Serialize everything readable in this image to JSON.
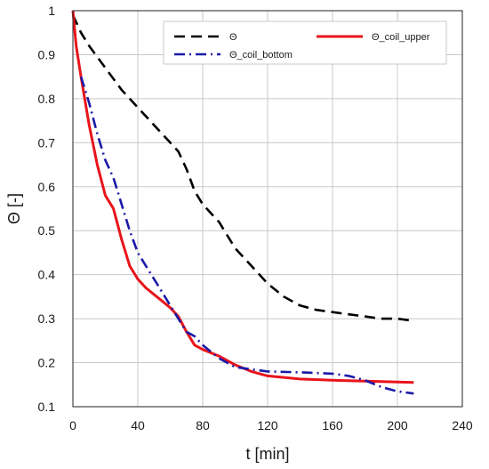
{
  "chart_data": {
    "type": "line",
    "title": "",
    "xlabel": "t [min]",
    "ylabel": "Θ [-]",
    "xlim": [
      0,
      240
    ],
    "ylim": [
      0.1,
      1.0
    ],
    "x_ticks": [
      0,
      40,
      80,
      120,
      160,
      200,
      240
    ],
    "y_ticks": [
      0.1,
      0.2,
      0.3,
      0.4,
      0.5,
      0.6,
      0.7,
      0.8,
      0.9,
      1
    ],
    "grid": true,
    "legend_position": "top-right",
    "series": [
      {
        "name": "Θ",
        "color": "#000000",
        "style": "dashed",
        "x": [
          0,
          5,
          10,
          20,
          30,
          40,
          50,
          60,
          65,
          70,
          75,
          80,
          90,
          100,
          110,
          120,
          130,
          140,
          150,
          160,
          170,
          180,
          190,
          200,
          210
        ],
        "y": [
          0.99,
          0.95,
          0.92,
          0.87,
          0.82,
          0.78,
          0.74,
          0.7,
          0.68,
          0.64,
          0.59,
          0.56,
          0.52,
          0.46,
          0.42,
          0.38,
          0.35,
          0.33,
          0.32,
          0.315,
          0.31,
          0.305,
          0.3,
          0.3,
          0.295
        ]
      },
      {
        "name": "Θ_coil_upper",
        "color": "#e8141b",
        "style": "solid",
        "x": [
          0,
          2,
          5,
          10,
          15,
          20,
          25,
          30,
          35,
          40,
          45,
          50,
          55,
          60,
          65,
          70,
          75,
          80,
          90,
          100,
          110,
          120,
          140,
          160,
          180,
          200,
          210
        ],
        "y": [
          1.0,
          0.92,
          0.85,
          0.74,
          0.65,
          0.58,
          0.55,
          0.48,
          0.42,
          0.39,
          0.37,
          0.355,
          0.34,
          0.325,
          0.305,
          0.27,
          0.24,
          0.23,
          0.215,
          0.195,
          0.18,
          0.17,
          0.163,
          0.16,
          0.158,
          0.156,
          0.155
        ]
      },
      {
        "name": "Θ_coil_bottom",
        "color": "#1a1aa8",
        "style": "dashdot",
        "x": [
          5,
          10,
          15,
          20,
          25,
          30,
          35,
          40,
          45,
          50,
          55,
          60,
          65,
          70,
          75,
          80,
          90,
          100,
          110,
          120,
          140,
          160,
          170,
          180,
          190,
          200,
          210
        ],
        "y": [
          0.85,
          0.79,
          0.72,
          0.66,
          0.62,
          0.56,
          0.5,
          0.45,
          0.42,
          0.39,
          0.36,
          0.33,
          0.3,
          0.27,
          0.26,
          0.24,
          0.21,
          0.19,
          0.185,
          0.18,
          0.178,
          0.175,
          0.17,
          0.16,
          0.145,
          0.135,
          0.13
        ]
      }
    ]
  }
}
